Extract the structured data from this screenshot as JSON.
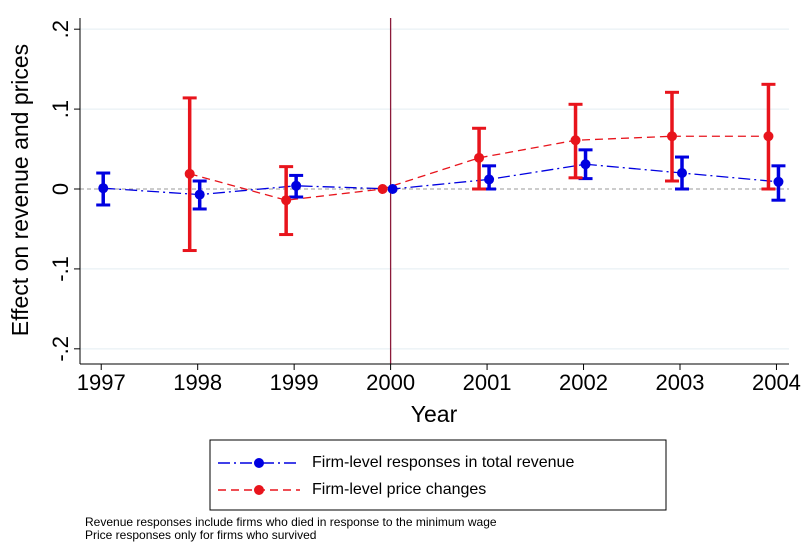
{
  "chart_data": {
    "type": "errorbar-line",
    "x_label": "Year",
    "y_label": "Effect on revenue and prices",
    "x": [
      1997,
      1998,
      1999,
      2000,
      2001,
      2002,
      2003,
      2004
    ],
    "xlim": [
      1996.78,
      2004.13
    ],
    "xticks": [
      1997,
      1998,
      1999,
      2000,
      2001,
      2002,
      2003,
      2004
    ],
    "ylim": [
      -0.219,
      0.214
    ],
    "yticks": [
      {
        "value": -0.2,
        "label": "-.2"
      },
      {
        "value": -0.1,
        "label": "-.1"
      },
      0,
      {
        "value": 0.1,
        "label": ".1"
      },
      {
        "value": 0.2,
        "label": ".2"
      }
    ],
    "grid": true,
    "xline": 2000,
    "xline_color": "#8b1a3a",
    "yline": 0,
    "series": [
      {
        "name": "Firm-level responses in total revenue",
        "color": "#0000e0",
        "line_style": "dashdot",
        "values": [
          0.001,
          -0.007,
          0.004,
          0,
          0.012,
          0.031,
          0.02,
          0.009
        ],
        "lower": [
          -0.02,
          -0.025,
          -0.01,
          null,
          0,
          0.013,
          0,
          -0.014
        ],
        "upper": [
          0.02,
          0.01,
          0.017,
          null,
          0.029,
          0.049,
          0.04,
          0.029
        ]
      },
      {
        "name": "Firm-level price changes",
        "color": "#e8141c",
        "line_style": "dashed",
        "values": [
          null,
          0.019,
          -0.014,
          0,
          0.039,
          0.061,
          0.066,
          0.066
        ],
        "lower": [
          null,
          -0.077,
          -0.057,
          null,
          0,
          0.014,
          0.01,
          0
        ],
        "upper": [
          null,
          0.114,
          0.028,
          null,
          0.076,
          0.106,
          0.121,
          0.131
        ]
      }
    ],
    "notes": [
      "Revenue responses include firms who died in response to the minimum wage",
      "Price responses only for firms who survived"
    ]
  }
}
